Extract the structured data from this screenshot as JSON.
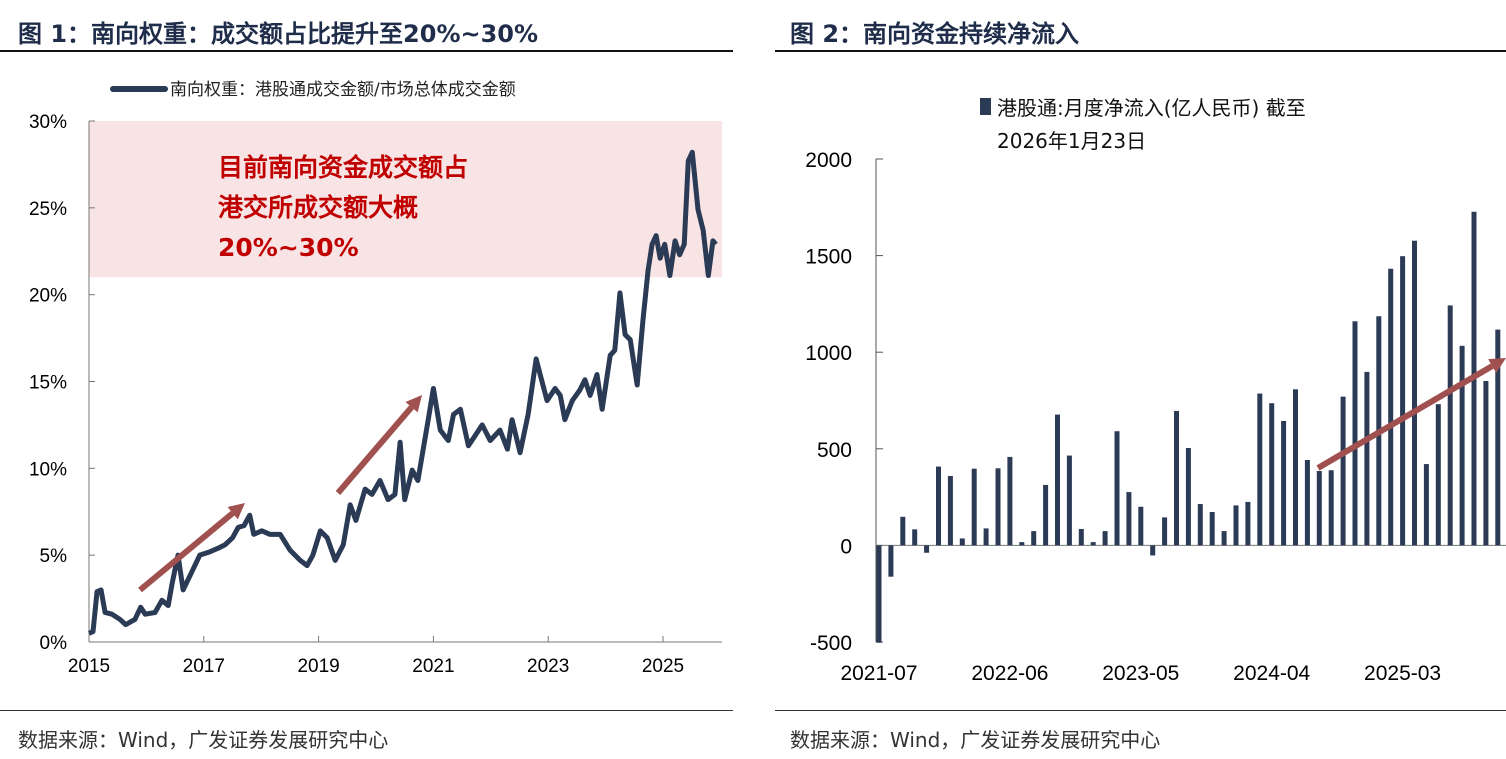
{
  "figure1": {
    "title": "图 1：南向权重：成交额占比提升至20%~30%",
    "source": "数据来源：Wind，广发证券发展研究中心"
  },
  "figure2": {
    "title": "图 2：南向资金持续净流入",
    "source": "数据来源：Wind，广发证券发展研究中心"
  },
  "chart_data": [
    {
      "type": "line",
      "legend": "南向权重：港股通成交金额/市场总体成交金额",
      "legend_placement": "top",
      "xlim": [
        2015,
        2026
      ],
      "ylim": [
        0,
        30
      ],
      "x_ticks": [
        "2015",
        "2017",
        "2019",
        "2021",
        "2023",
        "2025"
      ],
      "y_ticks": [
        "0%",
        "5%",
        "10%",
        "15%",
        "20%",
        "25%",
        "30%"
      ],
      "grid": false,
      "line_color": "#2b3a55",
      "highlight_band": {
        "from": 21,
        "to": 30,
        "color": "#f8e4e4"
      },
      "annotation": [
        "目前南向资金成交额占",
        "港交所成交额大概",
        "20%~30%"
      ],
      "annotation_color": "#c00000",
      "arrow_color": "#a0504e",
      "points": [
        [
          2015.0,
          0.5
        ],
        [
          2015.07,
          0.6
        ],
        [
          2015.14,
          2.9
        ],
        [
          2015.21,
          3.0
        ],
        [
          2015.28,
          1.7
        ],
        [
          2015.4,
          1.6
        ],
        [
          2015.54,
          1.3
        ],
        [
          2015.64,
          1.0
        ],
        [
          2015.8,
          1.3
        ],
        [
          2015.9,
          2.0
        ],
        [
          2015.98,
          1.6
        ],
        [
          2016.15,
          1.7
        ],
        [
          2016.27,
          2.4
        ],
        [
          2016.38,
          2.1
        ],
        [
          2016.45,
          3.4
        ],
        [
          2016.55,
          5.0
        ],
        [
          2016.64,
          3.0
        ],
        [
          2016.8,
          4.1
        ],
        [
          2016.93,
          5.0
        ],
        [
          2017.11,
          5.2
        ],
        [
          2017.25,
          5.4
        ],
        [
          2017.37,
          5.6
        ],
        [
          2017.5,
          6.0
        ],
        [
          2017.6,
          6.6
        ],
        [
          2017.7,
          6.7
        ],
        [
          2017.8,
          7.3
        ],
        [
          2017.87,
          6.2
        ],
        [
          2018.01,
          6.4
        ],
        [
          2018.15,
          6.2
        ],
        [
          2018.33,
          6.2
        ],
        [
          2018.5,
          5.3
        ],
        [
          2018.68,
          4.7
        ],
        [
          2018.8,
          4.4
        ],
        [
          2018.9,
          5.0
        ],
        [
          2019.03,
          6.4
        ],
        [
          2019.15,
          6.0
        ],
        [
          2019.29,
          4.7
        ],
        [
          2019.43,
          5.6
        ],
        [
          2019.55,
          7.9
        ],
        [
          2019.65,
          7.0
        ],
        [
          2019.81,
          8.8
        ],
        [
          2019.93,
          8.5
        ],
        [
          2020.07,
          9.3
        ],
        [
          2020.21,
          8.2
        ],
        [
          2020.33,
          8.5
        ],
        [
          2020.42,
          11.5
        ],
        [
          2020.5,
          8.2
        ],
        [
          2020.63,
          9.9
        ],
        [
          2020.73,
          9.3
        ],
        [
          2020.91,
          12.8
        ],
        [
          2021.0,
          14.6
        ],
        [
          2021.12,
          12.2
        ],
        [
          2021.26,
          11.6
        ],
        [
          2021.35,
          13.1
        ],
        [
          2021.47,
          13.4
        ],
        [
          2021.61,
          11.3
        ],
        [
          2021.73,
          11.9
        ],
        [
          2021.85,
          12.5
        ],
        [
          2021.99,
          11.6
        ],
        [
          2022.16,
          12.2
        ],
        [
          2022.29,
          11.1
        ],
        [
          2022.37,
          12.8
        ],
        [
          2022.51,
          10.9
        ],
        [
          2022.65,
          13.1
        ],
        [
          2022.79,
          16.3
        ],
        [
          2022.86,
          15.4
        ],
        [
          2022.98,
          13.9
        ],
        [
          2023.12,
          14.6
        ],
        [
          2023.21,
          14.2
        ],
        [
          2023.29,
          12.8
        ],
        [
          2023.42,
          13.9
        ],
        [
          2023.55,
          14.5
        ],
        [
          2023.64,
          15.1
        ],
        [
          2023.73,
          14.2
        ],
        [
          2023.85,
          15.4
        ],
        [
          2023.94,
          13.4
        ],
        [
          2024.08,
          16.5
        ],
        [
          2024.16,
          16.8
        ],
        [
          2024.25,
          20.1
        ],
        [
          2024.34,
          17.7
        ],
        [
          2024.43,
          17.4
        ],
        [
          2024.55,
          14.8
        ],
        [
          2024.65,
          18.5
        ],
        [
          2024.74,
          21.4
        ],
        [
          2024.81,
          22.9
        ],
        [
          2024.88,
          23.4
        ],
        [
          2024.95,
          22.1
        ],
        [
          2025.03,
          22.9
        ],
        [
          2025.12,
          21.1
        ],
        [
          2025.21,
          23.1
        ],
        [
          2025.29,
          22.3
        ],
        [
          2025.37,
          22.9
        ],
        [
          2025.44,
          27.7
        ],
        [
          2025.51,
          28.2
        ],
        [
          2025.61,
          24.9
        ],
        [
          2025.7,
          23.7
        ],
        [
          2025.79,
          21.1
        ],
        [
          2025.87,
          23.1
        ],
        [
          2025.92,
          22.9
        ]
      ]
    },
    {
      "type": "bar",
      "legend": [
        "港股通:月度净流入(亿人民币) 截至",
        "2026年1月23日"
      ],
      "legend_placement": "top",
      "ylim": [
        -500,
        2000
      ],
      "y_ticks": [
        "2000",
        "1500",
        "1000",
        "500",
        "0",
        "-500"
      ],
      "x_tick_labels": [
        "2021-07",
        "2022-06",
        "2023-05",
        "2024-04",
        "2025-03"
      ],
      "grid": false,
      "bar_color": "#2b3a55",
      "arrow_color": "#a0504e",
      "categories": [
        "2021-07",
        "2021-08",
        "2021-09",
        "2021-10",
        "2021-11",
        "2021-12",
        "2022-01",
        "2022-02",
        "2022-03",
        "2022-04",
        "2022-05",
        "2022-06",
        "2022-07",
        "2022-08",
        "2022-09",
        "2022-10",
        "2022-11",
        "2022-12",
        "2023-01",
        "2023-02",
        "2023-03",
        "2023-04",
        "2023-05",
        "2023-06",
        "2023-07",
        "2023-08",
        "2023-09",
        "2023-10",
        "2023-11",
        "2023-12",
        "2024-01",
        "2024-02",
        "2024-03",
        "2024-04",
        "2024-05",
        "2024-06",
        "2024-07",
        "2024-08",
        "2024-09",
        "2024-10",
        "2024-11",
        "2024-12",
        "2025-01",
        "2025-02",
        "2025-03",
        "2025-04",
        "2025-05",
        "2025-06",
        "2025-07",
        "2025-08",
        "2025-09",
        "2025-10",
        "2025-11"
      ],
      "values": [
        -504,
        -162,
        148,
        83,
        -38,
        408,
        359,
        36,
        397,
        88,
        399,
        458,
        17,
        74,
        313,
        677,
        465,
        85,
        17,
        74,
        591,
        276,
        200,
        -52,
        145,
        696,
        504,
        214,
        173,
        74,
        207,
        225,
        786,
        736,
        644,
        808,
        442,
        385,
        389,
        770,
        1160,
        898,
        1186,
        1432,
        1497,
        1577,
        421,
        731,
        1242,
        1033,
        1727,
        851,
        1117
      ]
    }
  ]
}
